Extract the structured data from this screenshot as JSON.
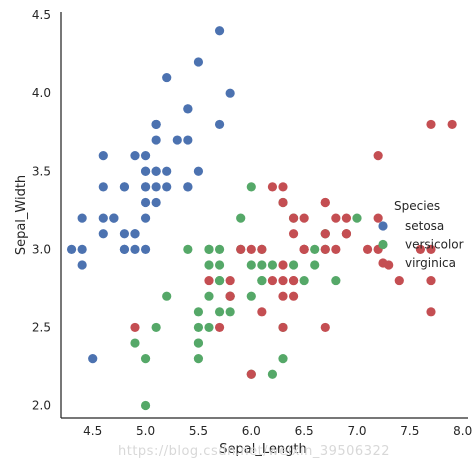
{
  "chart_data": {
    "type": "scatter",
    "title": "",
    "xlabel": "Sepal_Length",
    "ylabel": "Sepal_Width",
    "xlim": [
      4.2,
      8.05
    ],
    "ylim": [
      1.92,
      4.52
    ],
    "xticks": [
      4.5,
      5.0,
      5.5,
      6.0,
      6.5,
      7.0,
      7.5,
      8.0
    ],
    "yticks": [
      2.0,
      2.5,
      3.0,
      3.5,
      4.0,
      4.5
    ],
    "grid": false,
    "legend": {
      "title": "Species",
      "placement": "right"
    },
    "series": [
      {
        "name": "setosa",
        "color": "#4c72b0",
        "points": [
          [
            5.1,
            3.5
          ],
          [
            4.9,
            3.0
          ],
          [
            4.7,
            3.2
          ],
          [
            4.6,
            3.1
          ],
          [
            5.0,
            3.6
          ],
          [
            5.4,
            3.9
          ],
          [
            4.6,
            3.4
          ],
          [
            5.0,
            3.4
          ],
          [
            4.4,
            2.9
          ],
          [
            4.9,
            3.1
          ],
          [
            5.4,
            3.7
          ],
          [
            4.8,
            3.4
          ],
          [
            4.8,
            3.0
          ],
          [
            4.3,
            3.0
          ],
          [
            5.8,
            4.0
          ],
          [
            5.7,
            4.4
          ],
          [
            5.4,
            3.9
          ],
          [
            5.1,
            3.5
          ],
          [
            5.7,
            3.8
          ],
          [
            5.1,
            3.8
          ],
          [
            5.4,
            3.4
          ],
          [
            5.1,
            3.7
          ],
          [
            4.6,
            3.6
          ],
          [
            5.1,
            3.3
          ],
          [
            4.8,
            3.4
          ],
          [
            5.0,
            3.0
          ],
          [
            5.0,
            3.4
          ],
          [
            5.2,
            3.5
          ],
          [
            5.2,
            3.4
          ],
          [
            4.7,
            3.2
          ],
          [
            4.8,
            3.1
          ],
          [
            5.4,
            3.4
          ],
          [
            5.2,
            4.1
          ],
          [
            5.5,
            4.2
          ],
          [
            4.9,
            3.1
          ],
          [
            5.0,
            3.2
          ],
          [
            5.5,
            3.5
          ],
          [
            4.9,
            3.6
          ],
          [
            4.4,
            3.0
          ],
          [
            5.1,
            3.4
          ],
          [
            5.0,
            3.5
          ],
          [
            4.5,
            2.3
          ],
          [
            4.4,
            3.2
          ],
          [
            5.0,
            3.5
          ],
          [
            5.1,
            3.8
          ],
          [
            4.8,
            3.0
          ],
          [
            5.1,
            3.8
          ],
          [
            4.6,
            3.2
          ],
          [
            5.3,
            3.7
          ],
          [
            5.0,
            3.3
          ]
        ]
      },
      {
        "name": "versicolor",
        "color": "#55a868",
        "points": [
          [
            7.0,
            3.2
          ],
          [
            6.4,
            3.2
          ],
          [
            6.9,
            3.1
          ],
          [
            5.5,
            2.3
          ],
          [
            6.5,
            2.8
          ],
          [
            5.7,
            2.8
          ],
          [
            6.3,
            3.3
          ],
          [
            4.9,
            2.4
          ],
          [
            6.6,
            2.9
          ],
          [
            5.2,
            2.7
          ],
          [
            5.0,
            2.0
          ],
          [
            5.9,
            3.0
          ],
          [
            6.0,
            2.2
          ],
          [
            6.1,
            2.9
          ],
          [
            5.6,
            2.9
          ],
          [
            6.7,
            3.1
          ],
          [
            5.6,
            3.0
          ],
          [
            5.8,
            2.7
          ],
          [
            6.2,
            2.2
          ],
          [
            5.6,
            2.5
          ],
          [
            5.9,
            3.2
          ],
          [
            6.1,
            2.8
          ],
          [
            6.3,
            2.5
          ],
          [
            6.1,
            2.8
          ],
          [
            6.4,
            2.9
          ],
          [
            6.6,
            3.0
          ],
          [
            6.8,
            2.8
          ],
          [
            6.7,
            3.0
          ],
          [
            6.0,
            2.9
          ],
          [
            5.7,
            2.6
          ],
          [
            5.5,
            2.4
          ],
          [
            5.5,
            2.4
          ],
          [
            5.8,
            2.7
          ],
          [
            6.0,
            2.7
          ],
          [
            5.4,
            3.0
          ],
          [
            6.0,
            3.4
          ],
          [
            6.7,
            3.1
          ],
          [
            6.3,
            2.3
          ],
          [
            5.6,
            3.0
          ],
          [
            5.5,
            2.5
          ],
          [
            5.5,
            2.6
          ],
          [
            6.1,
            3.0
          ],
          [
            5.8,
            2.6
          ],
          [
            5.0,
            2.3
          ],
          [
            5.6,
            2.7
          ],
          [
            5.7,
            3.0
          ],
          [
            5.7,
            2.9
          ],
          [
            6.2,
            2.9
          ],
          [
            5.1,
            2.5
          ],
          [
            5.7,
            2.8
          ]
        ]
      },
      {
        "name": "virginica",
        "color": "#c44e52",
        "points": [
          [
            6.3,
            3.3
          ],
          [
            5.8,
            2.7
          ],
          [
            7.1,
            3.0
          ],
          [
            6.3,
            2.9
          ],
          [
            6.5,
            3.0
          ],
          [
            7.6,
            3.0
          ],
          [
            4.9,
            2.5
          ],
          [
            7.3,
            2.9
          ],
          [
            6.7,
            2.5
          ],
          [
            7.2,
            3.6
          ],
          [
            6.5,
            3.2
          ],
          [
            6.4,
            2.7
          ],
          [
            6.8,
            3.0
          ],
          [
            5.7,
            2.5
          ],
          [
            5.8,
            2.8
          ],
          [
            6.4,
            3.2
          ],
          [
            6.5,
            3.0
          ],
          [
            7.7,
            3.8
          ],
          [
            7.7,
            2.6
          ],
          [
            6.0,
            2.2
          ],
          [
            6.9,
            3.2
          ],
          [
            5.6,
            2.8
          ],
          [
            7.7,
            2.8
          ],
          [
            6.3,
            2.7
          ],
          [
            6.7,
            3.3
          ],
          [
            7.2,
            3.2
          ],
          [
            6.2,
            2.8
          ],
          [
            6.1,
            3.0
          ],
          [
            6.4,
            2.8
          ],
          [
            7.2,
            3.0
          ],
          [
            7.4,
            2.8
          ],
          [
            7.9,
            3.8
          ],
          [
            6.4,
            2.8
          ],
          [
            6.3,
            2.8
          ],
          [
            6.1,
            2.6
          ],
          [
            7.7,
            3.0
          ],
          [
            6.3,
            3.4
          ],
          [
            6.4,
            3.1
          ],
          [
            6.0,
            3.0
          ],
          [
            6.9,
            3.1
          ],
          [
            6.7,
            3.1
          ],
          [
            6.9,
            3.1
          ],
          [
            5.8,
            2.7
          ],
          [
            6.8,
            3.2
          ],
          [
            6.7,
            3.3
          ],
          [
            6.7,
            3.0
          ],
          [
            6.3,
            2.5
          ],
          [
            6.5,
            3.0
          ],
          [
            6.2,
            3.4
          ],
          [
            5.9,
            3.0
          ]
        ]
      }
    ]
  },
  "watermark": "https://blog.csdn.net/weixin_39506322"
}
